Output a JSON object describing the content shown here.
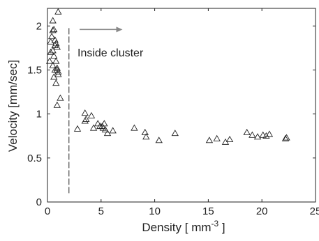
{
  "chart_data": {
    "type": "scatter",
    "title": "",
    "xlabel": "Density [ mm",
    "xlabel_superscript": "-3",
    "xlabel_suffix": " ]",
    "ylabel": "Velocity [mm/sec]",
    "xlim": [
      0,
      25
    ],
    "ylim": [
      0,
      2.2
    ],
    "xticks": [
      0,
      5,
      10,
      15,
      20,
      25
    ],
    "xtick_labels": [
      "0",
      "5",
      "10",
      "15",
      "20",
      "25"
    ],
    "yticks": [
      0,
      0.5,
      1,
      1.5,
      2
    ],
    "ytick_labels": [
      "0",
      "0.5",
      "1",
      "1.5",
      "2"
    ],
    "grid": false,
    "legend": "none",
    "marker": "open-triangle",
    "marker_color": "#222222",
    "series": [
      {
        "points": [
          [
            0.5,
            2.06
          ],
          [
            0.6,
            1.96
          ],
          [
            0.4,
            1.88
          ],
          [
            0.7,
            1.84
          ],
          [
            0.8,
            1.8
          ],
          [
            0.9,
            1.76
          ],
          [
            0.5,
            1.72
          ],
          [
            0.6,
            1.66
          ],
          [
            0.3,
            1.7
          ],
          [
            0.8,
            1.6
          ],
          [
            0.5,
            1.55
          ],
          [
            0.9,
            1.5
          ],
          [
            1.0,
            1.45
          ],
          [
            0.7,
            1.5
          ],
          [
            0.8,
            1.35
          ],
          [
            1.2,
            1.18
          ],
          [
            0.9,
            1.1
          ],
          [
            1.0,
            2.16
          ],
          [
            0.9,
            1.52
          ],
          [
            0.2,
            1.6
          ],
          [
            0.7,
            1.78
          ],
          [
            0.5,
            1.95
          ],
          [
            1.0,
            1.48
          ],
          [
            0.6,
            1.42
          ],
          [
            0.3,
            1.82
          ],
          [
            2.8,
            0.83
          ],
          [
            3.5,
            1.01
          ],
          [
            3.6,
            0.94
          ],
          [
            3.5,
            0.92
          ],
          [
            4.1,
            0.98
          ],
          [
            4.3,
            0.84
          ],
          [
            4.7,
            0.89
          ],
          [
            4.9,
            0.86
          ],
          [
            5.1,
            0.86
          ],
          [
            5.3,
            0.89
          ],
          [
            5.4,
            0.82
          ],
          [
            5.6,
            0.78
          ],
          [
            5.2,
            0.84
          ],
          [
            6.1,
            0.81
          ],
          [
            8.1,
            0.84
          ],
          [
            9.1,
            0.79
          ],
          [
            9.2,
            0.74
          ],
          [
            10.4,
            0.7
          ],
          [
            11.9,
            0.78
          ],
          [
            15.1,
            0.7
          ],
          [
            15.8,
            0.72
          ],
          [
            16.6,
            0.68
          ],
          [
            17.0,
            0.71
          ],
          [
            18.6,
            0.79
          ],
          [
            19.1,
            0.76
          ],
          [
            19.6,
            0.74
          ],
          [
            20.1,
            0.76
          ],
          [
            20.4,
            0.75
          ],
          [
            20.7,
            0.77
          ],
          [
            22.2,
            0.72
          ],
          [
            22.3,
            0.73
          ]
        ]
      }
    ],
    "annotations": [
      {
        "text": "Inside cluster"
      }
    ],
    "reference_lines": [
      {
        "type": "vertical-dashed",
        "x": 2.0,
        "y_from": 0.1,
        "y_to": 1.98
      }
    ],
    "arrow": {
      "x_from": 3.0,
      "x_to": 7.0,
      "y": 1.96,
      "color": "#888888"
    }
  }
}
